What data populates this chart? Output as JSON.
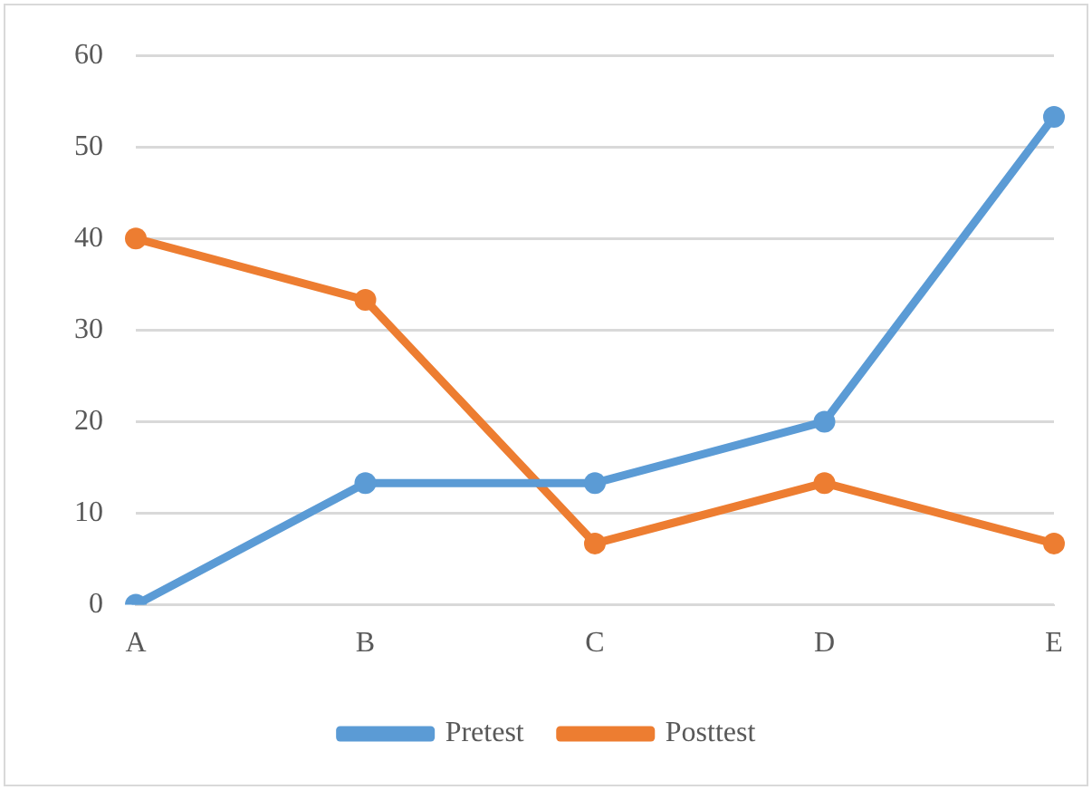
{
  "chart_data": {
    "type": "line",
    "categories": [
      "A",
      "B",
      "C",
      "D",
      "E"
    ],
    "series": [
      {
        "name": "Pretest",
        "color": "#5b9bd5",
        "values": [
          0,
          13.3,
          13.3,
          20,
          53.3
        ]
      },
      {
        "name": "Posttest",
        "color": "#ed7d31",
        "values": [
          40,
          33.3,
          6.7,
          13.3,
          6.7
        ]
      }
    ],
    "ylim": [
      0,
      60
    ],
    "yticks": [
      0,
      10,
      20,
      30,
      40,
      50,
      60
    ],
    "grid": "y",
    "legend": "bottom",
    "marker": "circle",
    "line_style": "solid"
  }
}
